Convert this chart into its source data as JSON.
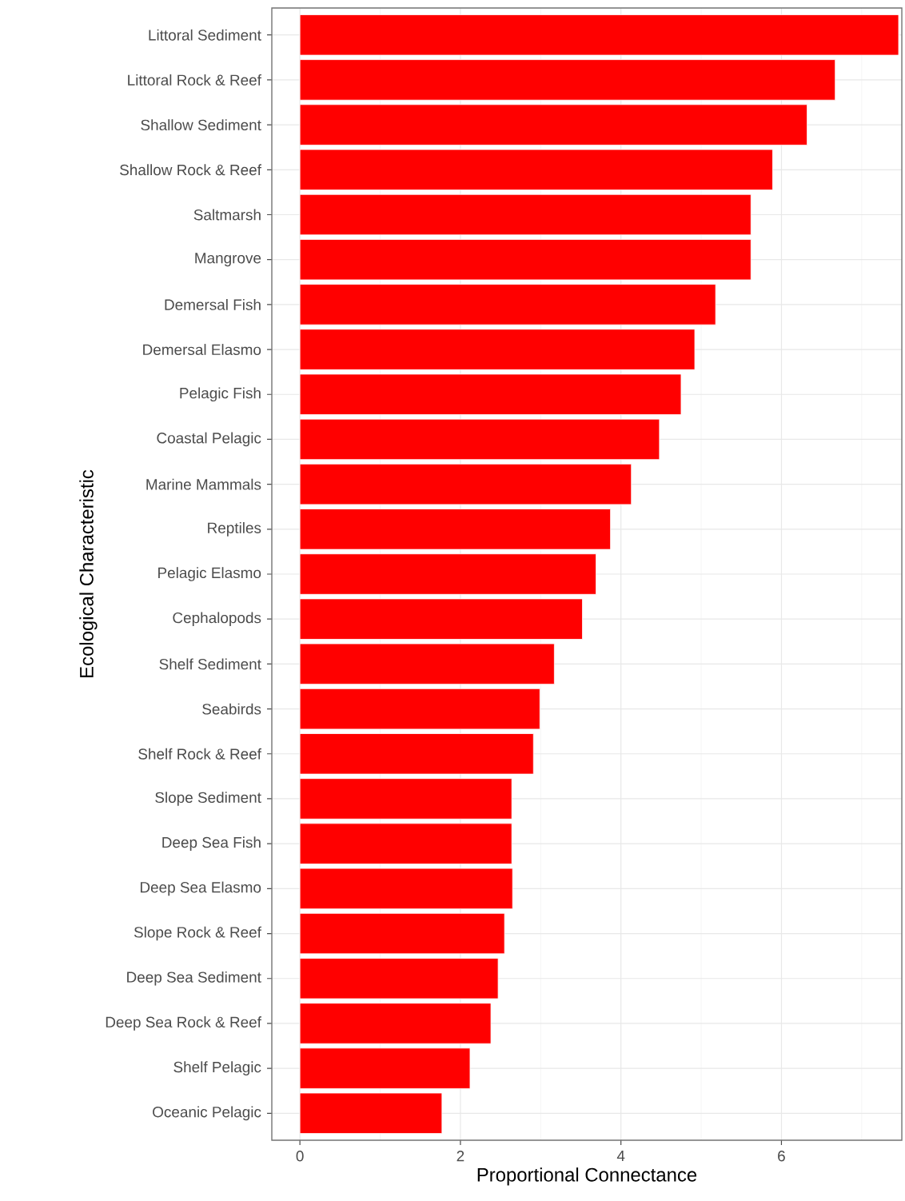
{
  "chart_data": {
    "type": "bar",
    "orientation": "horizontal",
    "xlabel": "Proportional Connectance",
    "ylabel": "Ecological Characteristic",
    "categories": [
      "Littoral Sediment",
      "Littoral Rock & Reef",
      "Shallow Sediment",
      "Shallow Rock & Reef",
      "Saltmarsh",
      "Mangrove",
      "Demersal Fish",
      "Demersal Elasmo",
      "Pelagic Fish",
      "Coastal Pelagic",
      "Marine Mammals",
      "Reptiles",
      "Pelagic Elasmo",
      "Cephalopods",
      "Shelf Sediment",
      "Seabirds",
      "Shelf Rock & Reef",
      "Slope Sediment",
      "Deep Sea Fish",
      "Deep Sea Elasmo",
      "Slope Rock & Reef",
      "Deep Sea Sediment",
      "Deep Sea Rock & Reef",
      "Shelf Pelagic",
      "Oceanic Pelagic"
    ],
    "values": [
      7.46,
      6.67,
      6.32,
      5.89,
      5.62,
      5.62,
      5.18,
      4.92,
      4.75,
      4.48,
      4.13,
      3.87,
      3.69,
      3.52,
      3.17,
      2.99,
      2.91,
      2.64,
      2.64,
      2.65,
      2.55,
      2.47,
      2.38,
      2.12,
      1.77
    ],
    "color": "#ff0000",
    "xlim": [
      -0.35,
      7.5
    ],
    "xticks": [
      0,
      2,
      4,
      6
    ],
    "grid": true
  }
}
